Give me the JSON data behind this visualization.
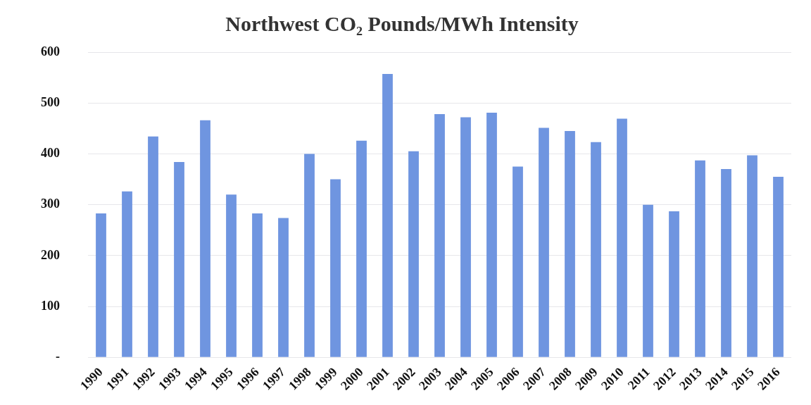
{
  "chart_data": {
    "type": "bar",
    "title": "Northwest CO₂ Pounds/MWh Intensity",
    "categories": [
      "1990",
      "1991",
      "1992",
      "1993",
      "1994",
      "1995",
      "1996",
      "1997",
      "1998",
      "1999",
      "2000",
      "2001",
      "2002",
      "2003",
      "2004",
      "2005",
      "2006",
      "2007",
      "2008",
      "2009",
      "2010",
      "2011",
      "2012",
      "2013",
      "2014",
      "2015",
      "2016"
    ],
    "values": [
      283,
      326,
      434,
      384,
      466,
      320,
      283,
      274,
      400,
      350,
      426,
      557,
      405,
      478,
      472,
      481,
      375,
      451,
      445,
      423,
      469,
      300,
      287,
      387,
      370,
      397,
      355
    ],
    "color": "#6f95e0",
    "ylim": [
      0,
      600
    ],
    "yticks": [
      {
        "value": 0,
        "label": "-"
      },
      100,
      200,
      300,
      400,
      500,
      600
    ],
    "grid": "y"
  }
}
